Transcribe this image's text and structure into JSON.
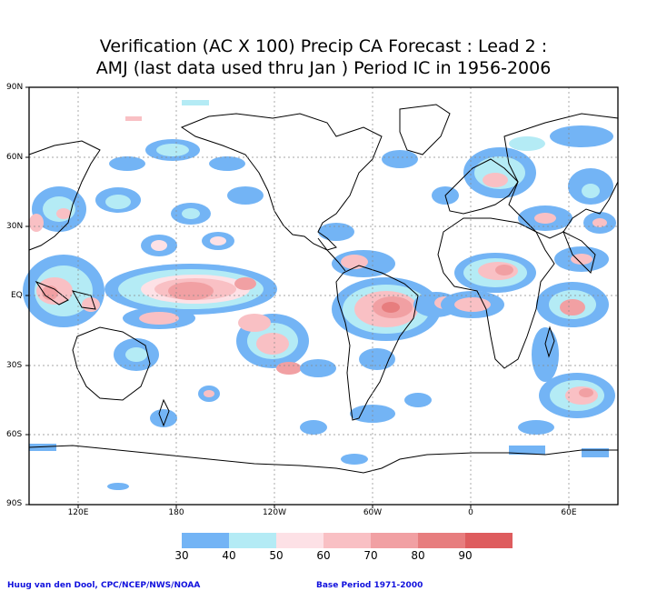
{
  "title_line1": "Verification (AC X 100) Precip CA Forecast : Lead 2 :",
  "title_line2": "AMJ (last data used thru Jan ) Period IC in 1956-2006",
  "lat_labels": [
    "90N",
    "60N",
    "30N",
    "EQ",
    "30S",
    "60S",
    "90S"
  ],
  "lon_labels": [
    "120E",
    "180",
    "120W",
    "60W",
    "0",
    "60E"
  ],
  "colorbar": {
    "colors": [
      "#73b4f5",
      "#b4ebf5",
      "#fde1e6",
      "#f9c0c4",
      "#f1a0a3",
      "#e77d7e",
      "#de5c5e"
    ],
    "labels": [
      "30",
      "40",
      "50",
      "60",
      "70",
      "80",
      "90"
    ]
  },
  "footer_left": "Huug van den Dool, CPC/NCEP/NWS/NOAA",
  "footer_right": "Base Period 1971-2000"
}
